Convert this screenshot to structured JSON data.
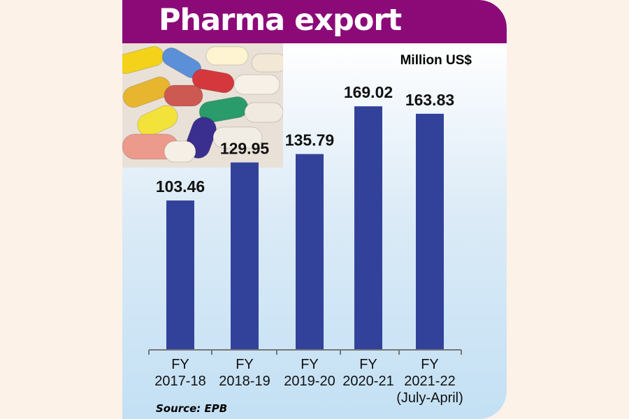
{
  "chart_data": {
    "type": "bar",
    "title": "Pharma export",
    "ylabel": "Million US$",
    "categories": [
      [
        "FY",
        "2017-18"
      ],
      [
        "FY",
        "2018-19"
      ],
      [
        "FY",
        "2019-20"
      ],
      [
        "FY",
        "2020-21"
      ],
      [
        "FY",
        "2021-22",
        "(July-April)"
      ]
    ],
    "values": [
      103.46,
      129.95,
      135.79,
      169.02,
      163.83
    ],
    "value_labels": [
      "103.46",
      "129.95",
      "135.79",
      "169.02",
      "163.83"
    ],
    "ylim": [
      0,
      243
    ],
    "grid": false,
    "bar_color": "#32429a",
    "source": "Source: EPB"
  },
  "colors": {
    "header": "#8b0a78",
    "bar": "#32429a"
  }
}
